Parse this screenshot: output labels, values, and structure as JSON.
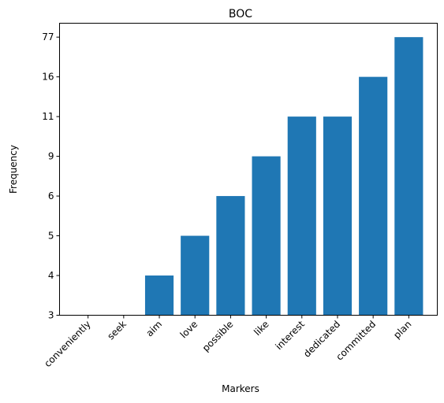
{
  "chart_data": {
    "type": "bar",
    "title": "BOC",
    "xlabel": "Markers",
    "ylabel": "Frequency",
    "categories": [
      "conveniently",
      "seek",
      "aim",
      "love",
      "possible",
      "like",
      "interest",
      "dedicated",
      "committed",
      "plan"
    ],
    "values": [
      3,
      3,
      4,
      5,
      6,
      9,
      11,
      11,
      16,
      77
    ],
    "y_tick_labels": [
      "3",
      "4",
      "5",
      "6",
      "9",
      "11",
      "16",
      "77"
    ],
    "y_scale": "categorical-rank",
    "bar_color": "#1f77b4",
    "grid": false,
    "legend": "none"
  }
}
